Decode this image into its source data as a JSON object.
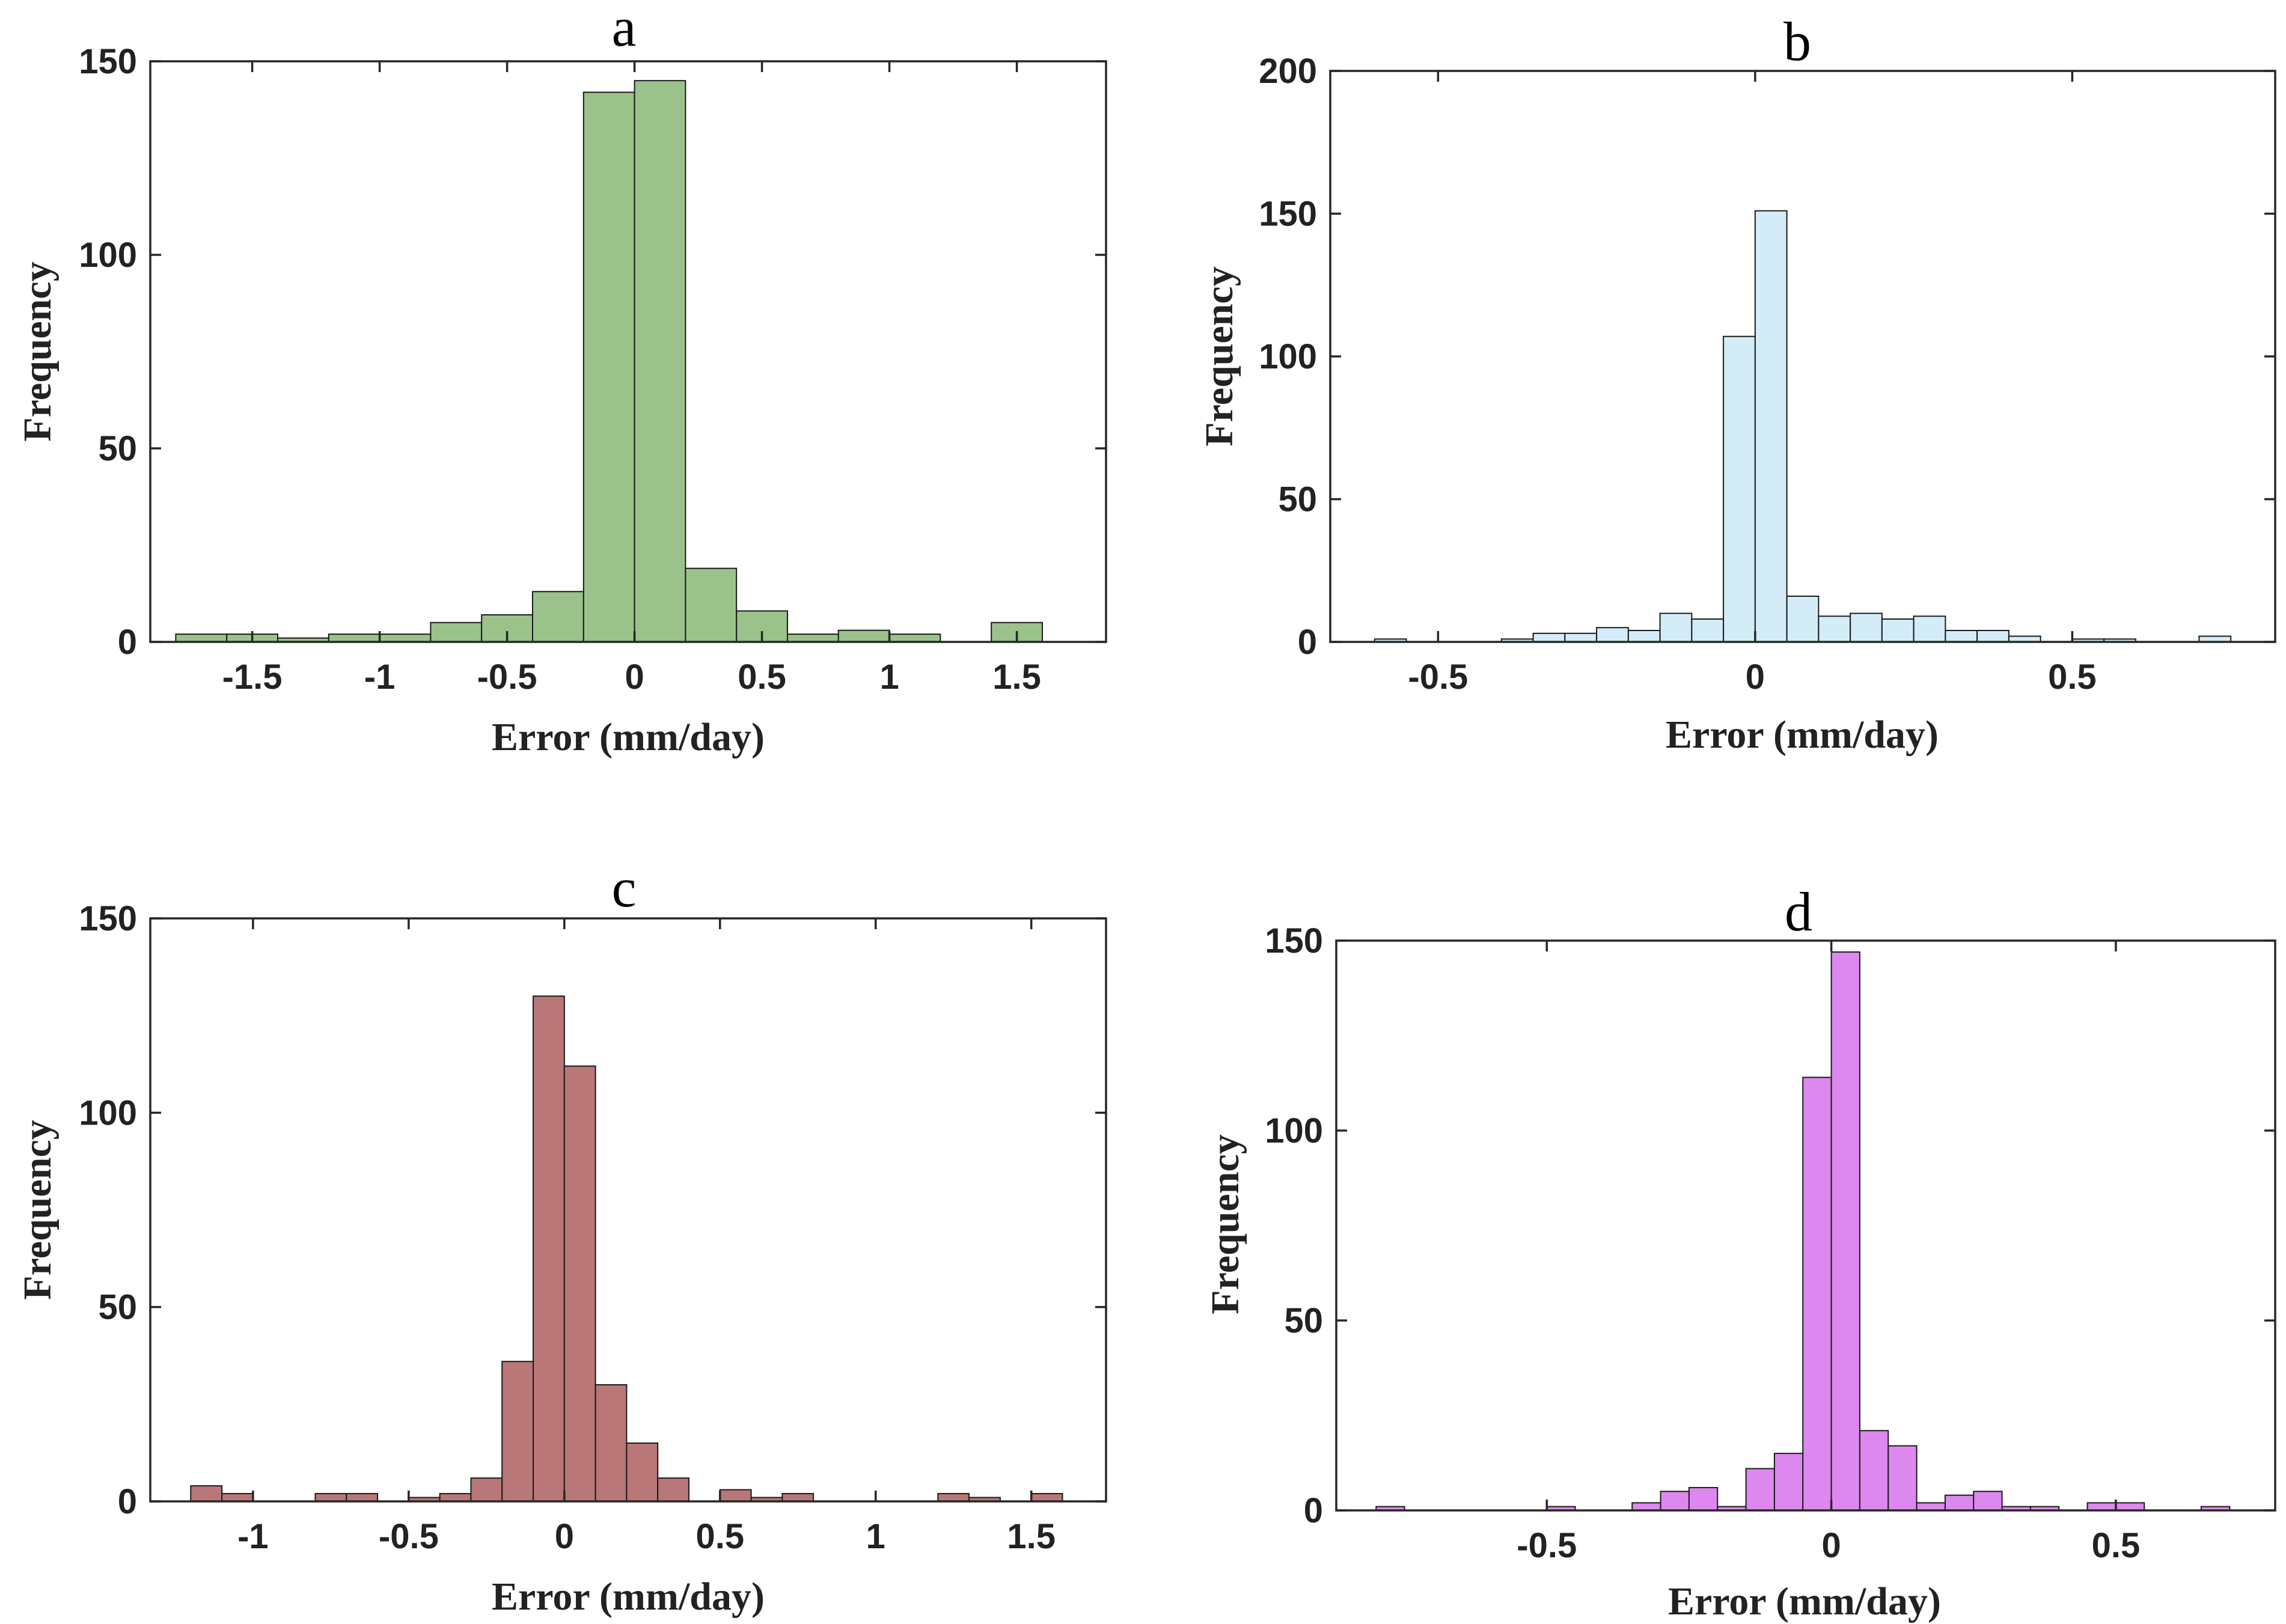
{
  "chart_data": [
    {
      "panel": "a",
      "type": "bar",
      "title": "a",
      "xlabel": "Error (mm/day)",
      "ylabel": "Frequency",
      "color": "#9bc28a",
      "xlim": [
        -1.9,
        1.85
      ],
      "ylim": [
        0,
        150
      ],
      "xticks": [
        -1.5,
        -1,
        -0.5,
        0,
        0.5,
        1,
        1.5
      ],
      "xtick_labels": [
        "-1.5",
        "-1",
        "-0.5",
        "0",
        "0.5",
        "1",
        "1.5"
      ],
      "yticks": [
        0,
        50,
        100,
        150
      ],
      "ytick_labels": [
        "0",
        "50",
        "100",
        "150"
      ],
      "bin_width": 0.2,
      "bin_edges_start": -1.8,
      "values": [
        2,
        2,
        1,
        2,
        2,
        5,
        7,
        13,
        142,
        145,
        19,
        8,
        2,
        3,
        2,
        0,
        5
      ]
    },
    {
      "panel": "b",
      "type": "bar",
      "title": "b",
      "xlabel": "Error (mm/day)",
      "ylabel": "Frequency",
      "color": "#d4ecf7",
      "xlim": [
        -0.67,
        0.82
      ],
      "ylim": [
        0,
        200
      ],
      "xticks": [
        -0.5,
        0,
        0.5
      ],
      "xtick_labels": [
        "-0.5",
        "0",
        "0.5"
      ],
      "yticks": [
        0,
        50,
        100,
        150,
        200
      ],
      "ytick_labels": [
        "0",
        "50",
        "100",
        "150",
        "200"
      ],
      "bin_width": 0.05,
      "bin_edges_start": -0.6,
      "values": [
        1,
        0,
        0,
        0,
        1,
        3,
        3,
        5,
        4,
        10,
        8,
        107,
        151,
        16,
        9,
        10,
        8,
        9,
        4,
        4,
        2,
        0,
        1,
        1,
        0,
        0,
        2
      ]
    },
    {
      "panel": "c",
      "type": "bar",
      "title": "c",
      "xlabel": "Error (mm/day)",
      "ylabel": "Frequency",
      "color": "#b97777",
      "xlim": [
        -1.33,
        1.74
      ],
      "ylim": [
        0,
        150
      ],
      "xticks": [
        -1,
        -0.5,
        0,
        0.5,
        1,
        1.5
      ],
      "xtick_labels": [
        "-1",
        "-0.5",
        "0",
        "0.5",
        "1",
        "1.5"
      ],
      "yticks": [
        0,
        50,
        100,
        150
      ],
      "ytick_labels": [
        "0",
        "50",
        "100",
        "150"
      ],
      "bin_width": 0.1,
      "bin_edges_start": -1.2,
      "values": [
        4,
        2,
        0,
        0,
        2,
        2,
        0,
        1,
        2,
        6,
        36,
        130,
        112,
        30,
        15,
        6,
        0,
        3,
        1,
        2,
        0,
        0,
        0,
        0,
        2,
        1,
        0,
        2
      ]
    },
    {
      "panel": "d",
      "type": "bar",
      "title": "d",
      "xlabel": "Error (mm/day)",
      "ylabel": "Frequency",
      "color": "#dd88ee",
      "xlim": [
        -0.87,
        0.78
      ],
      "ylim": [
        0,
        150
      ],
      "xticks": [
        -0.5,
        0,
        0.5
      ],
      "xtick_labels": [
        "-0.5",
        "0",
        "0.5"
      ],
      "yticks": [
        0,
        50,
        100,
        150
      ],
      "ytick_labels": [
        "0",
        "50",
        "100",
        "150"
      ],
      "bin_width": 0.05,
      "bin_edges_start": -0.8,
      "values": [
        1,
        0,
        0,
        0,
        0,
        0,
        1,
        0,
        0,
        2,
        5,
        6,
        1,
        11,
        15,
        114,
        147,
        21,
        17,
        2,
        4,
        5,
        1,
        1,
        0,
        2,
        2,
        0,
        0,
        1
      ]
    }
  ]
}
